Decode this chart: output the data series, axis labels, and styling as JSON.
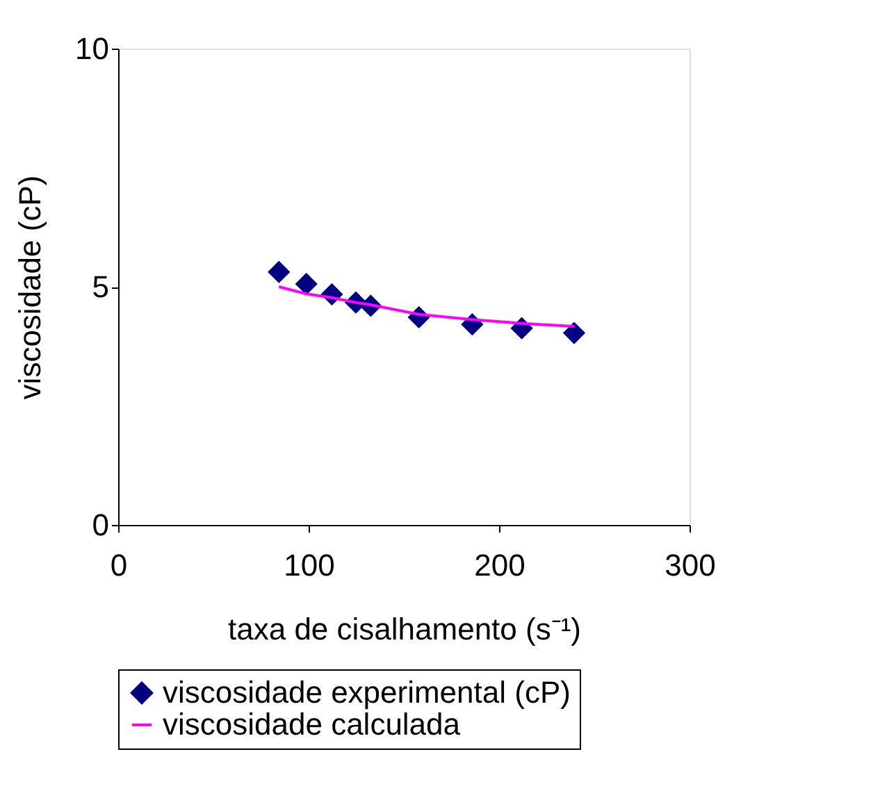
{
  "chart_data": {
    "type": "scatter",
    "xlabel": "taxa de cisalhamento (s⁻¹)",
    "ylabel": "viscosidade (cP)",
    "xlim": [
      0,
      300
    ],
    "xticks": [
      0,
      100,
      200,
      300
    ],
    "ylim": [
      0,
      10
    ],
    "yticks": [
      0,
      5,
      10
    ],
    "grid": false,
    "legend": "bottom",
    "series": [
      {
        "name": "viscosidade experimental (cP)",
        "marker": "diamond",
        "color": "#000080",
        "x": [
          84.4,
          98.8,
          112.2,
          124.8,
          132.6,
          157.9,
          185.9,
          211.9,
          239.4
        ],
        "values": [
          5.31,
          5.06,
          4.84,
          4.67,
          4.6,
          4.36,
          4.21,
          4.13,
          4.03
        ]
      },
      {
        "name": "viscosidade calculada",
        "type": "line",
        "marker": "none",
        "line_style": "solid",
        "color": "#ff00ff",
        "x": [
          84.4,
          98.8,
          112.2,
          124.8,
          132.6,
          157.9,
          185.9,
          211.9,
          239.4
        ],
        "values": [
          5.0,
          4.85,
          4.77,
          4.67,
          4.62,
          4.42,
          4.31,
          4.23,
          4.17
        ]
      }
    ]
  }
}
